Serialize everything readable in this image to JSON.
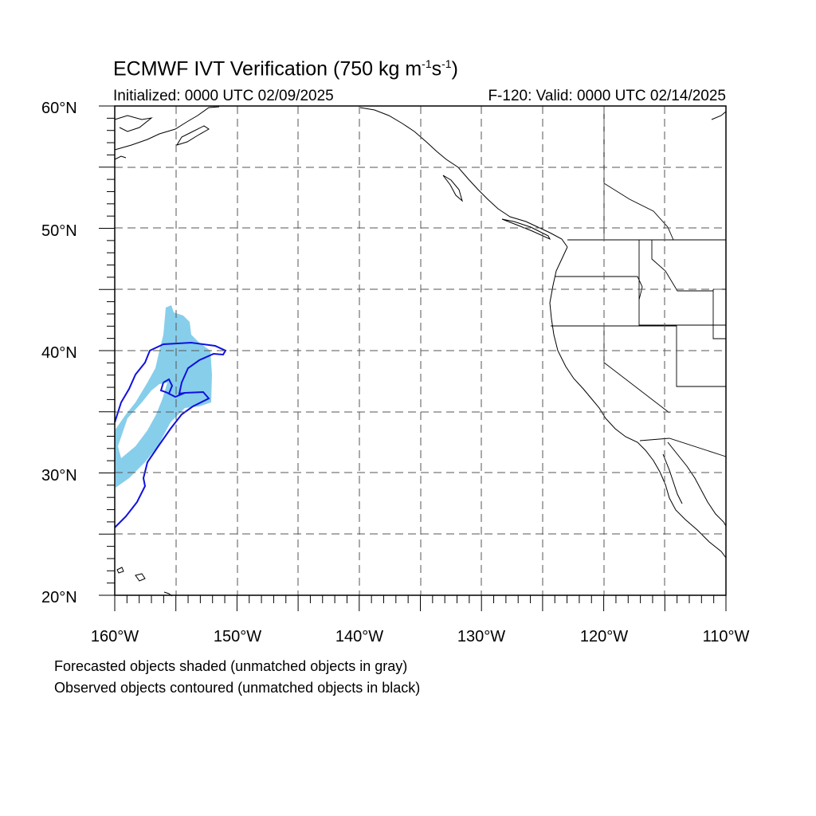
{
  "title": {
    "text_main": "ECMWF IVT Verification (750 kg m",
    "sup1": "-1",
    "mid": "s",
    "sup2": "-1",
    "end": ")"
  },
  "subtitle": {
    "initialized": "Initialized: 0000 UTC 02/09/2025",
    "valid": "F-120: Valid: 0000 UTC 02/14/2025"
  },
  "axes": {
    "lon_range": [
      -160,
      -110
    ],
    "lat_range": [
      20,
      60
    ],
    "lat_labels": [
      "20°N",
      "30°N",
      "40°N",
      "50°N",
      "60°N"
    ],
    "lon_labels": [
      "160°W",
      "150°W",
      "140°W",
      "130°W",
      "120°W",
      "110°W"
    ],
    "grid": "dashed every 5°"
  },
  "colors": {
    "forecast_fill": "#87ceeb",
    "observed_contour": "#1010e0",
    "coastline": "#000000"
  },
  "legend": {
    "line1": "Forecasted objects shaded (unmatched objects in gray)",
    "line2": "Observed objects contoured (unmatched objects in black)"
  }
}
